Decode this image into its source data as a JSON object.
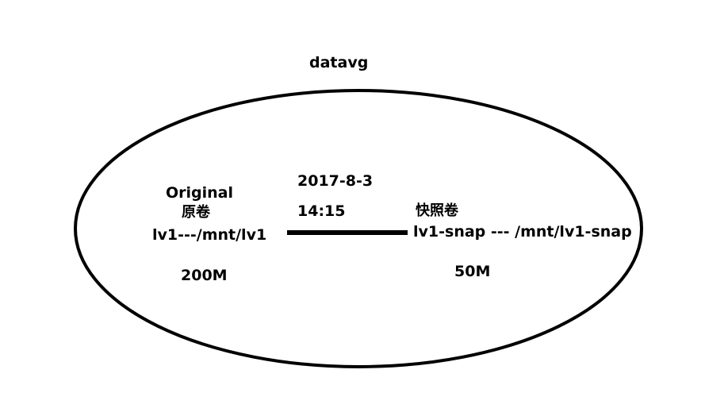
{
  "volume_group": {
    "name": "datavg"
  },
  "original_volume": {
    "label_en": "Original",
    "label_zh": "原卷",
    "mount": "lv1---/mnt/lv1",
    "size": "200M"
  },
  "snapshot_volume": {
    "date": "2017-8-3",
    "time": "14:15",
    "label_zh": "快照卷",
    "mount": "lv1-snap --- /mnt/lv1-snap",
    "size": "50M"
  },
  "colors": {
    "stroke": "#000000",
    "background": "#ffffff"
  }
}
